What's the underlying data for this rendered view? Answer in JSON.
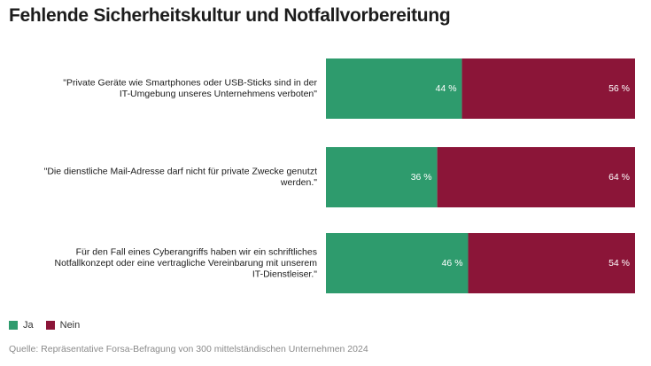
{
  "title": "Fehlende Sicherheitskultur und Notfallvorbereitung",
  "legend": [
    {
      "label": "Ja",
      "color": "#2e9b6d"
    },
    {
      "label": "Nein",
      "color": "#8b1538"
    }
  ],
  "source": "Quelle: Repräsentative Forsa-Befragung von 300 mittelständischen Unternehmen 2024",
  "chart_data": {
    "type": "bar",
    "orientation": "horizontal",
    "stacked": true,
    "normalized": true,
    "categories": [
      [
        "\"Private Geräte wie Smartphones oder USB-Sticks sind in der",
        "IT-Umgebung unseres Unternehmens verboten\""
      ],
      [
        "\"Die dienstliche Mail-Adresse darf nicht für private Zwecke genutzt",
        "werden.\""
      ],
      [
        "Für den Fall eines Cyberangriffs haben wir ein schriftliches",
        "Notfallkonzept oder eine vertragliche Vereinbarung mit unserem",
        "IT-Dienstleiser.\""
      ]
    ],
    "series": [
      {
        "name": "Ja",
        "values": [
          44,
          36,
          46
        ],
        "labels": [
          "44 %",
          "36 %",
          "46 %"
        ],
        "color": "#2e9b6d"
      },
      {
        "name": "Nein",
        "values": [
          56,
          64,
          54
        ],
        "labels": [
          "56 %",
          "64 %",
          "54 %"
        ],
        "color": "#8b1538"
      }
    ],
    "xlim": [
      0,
      100
    ],
    "grid": false,
    "legend_position": "bottom-left"
  }
}
